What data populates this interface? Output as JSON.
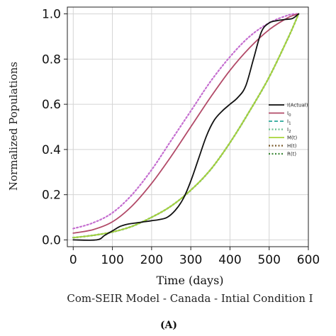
{
  "chart_data": {
    "type": "line",
    "title": "",
    "subtitle": "Com-SEIR Model - Canada - Intial Condition I",
    "panel_label": "(A)",
    "xlabel": "Time (days)",
    "ylabel": "Normalized Populations",
    "xlim": [
      -15,
      600
    ],
    "ylim": [
      -0.03,
      1.03
    ],
    "x_ticks": [
      0,
      100,
      200,
      300,
      400,
      500,
      600
    ],
    "y_ticks": [
      0.0,
      0.2,
      0.4,
      0.6,
      0.8,
      1.0
    ],
    "x_tick_labels": [
      "0",
      "100",
      "200",
      "300",
      "400",
      "500",
      "600"
    ],
    "y_tick_labels": [
      "0.0",
      "0.2",
      "0.4",
      "0.6",
      "0.8",
      "1.0"
    ],
    "grid": true,
    "legend_position": "center-right",
    "series": [
      {
        "name": "I(Actual)",
        "color": "#111111",
        "style": "solid",
        "x": [
          0,
          60,
          80,
          100,
          120,
          140,
          160,
          180,
          200,
          220,
          240,
          260,
          280,
          300,
          320,
          340,
          360,
          380,
          400,
          420,
          440,
          460,
          480,
          500,
          520,
          540,
          560,
          575
        ],
        "y": [
          0.0,
          0.0,
          0.02,
          0.04,
          0.06,
          0.07,
          0.075,
          0.08,
          0.085,
          0.09,
          0.1,
          0.13,
          0.18,
          0.26,
          0.36,
          0.46,
          0.53,
          0.57,
          0.6,
          0.63,
          0.68,
          0.8,
          0.92,
          0.96,
          0.97,
          0.975,
          0.98,
          1.0
        ]
      },
      {
        "name": "I0",
        "color": "#b24a68",
        "style": "solid",
        "x": [
          0,
          50,
          100,
          150,
          200,
          250,
          300,
          350,
          400,
          450,
          500,
          550,
          575
        ],
        "y": [
          0.03,
          0.045,
          0.08,
          0.15,
          0.25,
          0.37,
          0.5,
          0.63,
          0.75,
          0.85,
          0.93,
          0.985,
          1.0
        ]
      },
      {
        "name": "I1",
        "color": "#2aa89a",
        "style": "dashed",
        "x": [
          0,
          50,
          100,
          150,
          200,
          250,
          300,
          350,
          400,
          450,
          500,
          550,
          575
        ],
        "y": [
          0.01,
          0.02,
          0.035,
          0.06,
          0.1,
          0.15,
          0.22,
          0.31,
          0.43,
          0.57,
          0.72,
          0.9,
          1.0
        ]
      },
      {
        "name": "I2",
        "color": "#6cc090",
        "style": "dotted",
        "x": [
          0,
          50,
          100,
          150,
          200,
          250,
          300,
          350,
          400,
          450,
          500,
          550,
          575
        ],
        "y": [
          0.01,
          0.02,
          0.035,
          0.06,
          0.1,
          0.15,
          0.22,
          0.31,
          0.43,
          0.57,
          0.72,
          0.9,
          1.0
        ]
      },
      {
        "name": "M(t)",
        "color": "#a8d43a",
        "style": "solid",
        "x": [
          0,
          50,
          100,
          150,
          200,
          250,
          300,
          350,
          400,
          450,
          500,
          550,
          575
        ],
        "y": [
          0.01,
          0.02,
          0.035,
          0.06,
          0.1,
          0.15,
          0.22,
          0.31,
          0.43,
          0.57,
          0.72,
          0.9,
          1.0
        ]
      },
      {
        "name": "H(t)",
        "color": "#7a5a2a",
        "style": "dotted",
        "x": [
          0,
          50,
          100,
          150,
          200,
          250,
          300,
          350,
          400,
          450,
          500,
          550,
          575
        ],
        "y": [
          0.01,
          0.02,
          0.035,
          0.06,
          0.1,
          0.15,
          0.22,
          0.31,
          0.43,
          0.57,
          0.72,
          0.9,
          1.0
        ]
      },
      {
        "name": "R(t)",
        "color": "#3f8a3a",
        "style": "dotted",
        "x": [
          0,
          50,
          100,
          150,
          200,
          250,
          300,
          350,
          400,
          450,
          500,
          550,
          575
        ],
        "y": [
          0.01,
          0.02,
          0.035,
          0.06,
          0.1,
          0.15,
          0.22,
          0.31,
          0.43,
          0.57,
          0.72,
          0.9,
          1.0
        ]
      },
      {
        "name": "",
        "color": "#c56fd0",
        "style": "dotted",
        "x": [
          0,
          50,
          100,
          150,
          200,
          250,
          300,
          350,
          400,
          450,
          500,
          550,
          575
        ],
        "y": [
          0.05,
          0.075,
          0.12,
          0.2,
          0.31,
          0.44,
          0.57,
          0.7,
          0.81,
          0.9,
          0.96,
          0.995,
          1.0
        ]
      }
    ]
  }
}
